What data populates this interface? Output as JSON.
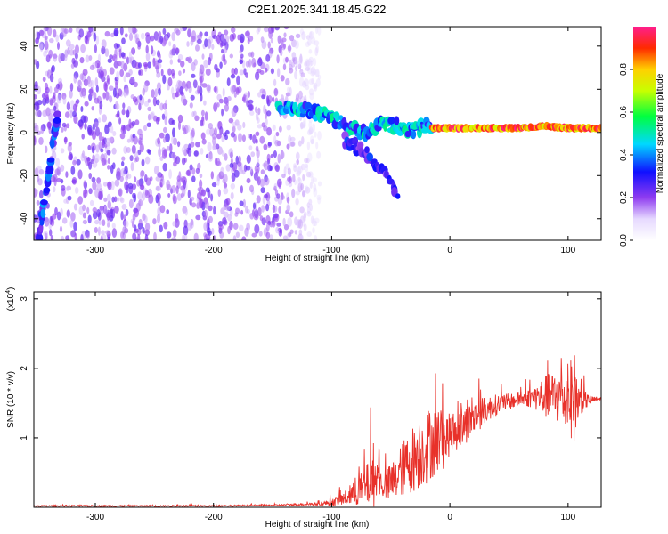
{
  "title": "C2E1.2025.341.18.45.G22",
  "chart_data": [
    {
      "type": "heatmap",
      "title": "C2E1.2025.341.18.45.G22",
      "xlabel": "Height of straight line (km)",
      "ylabel": "Frequency (Hz)",
      "xlim": [
        -352,
        128
      ],
      "ylim": [
        -50,
        49
      ],
      "xticks": [
        -300,
        -200,
        -100,
        0,
        100
      ],
      "xtick_labels": [
        "-300",
        "-200",
        "-100",
        "0",
        "100"
      ],
      "yticks": [
        -40,
        -20,
        0,
        20,
        40
      ],
      "ytick_labels": [
        "-40",
        "-20",
        "0",
        "20",
        "40"
      ],
      "colorbar": {
        "label": "Normalized spectral amplitude",
        "range": [
          0,
          1
        ],
        "ticks": [
          0.0,
          0.2,
          0.4,
          0.6,
          0.8
        ],
        "tick_labels": [
          "0.0",
          "0.2",
          "0.4",
          "0.6",
          "0.8"
        ]
      },
      "features": [
        {
          "name": "diffuse noise",
          "x_range": [
            -352,
            -110
          ],
          "y_range": [
            -50,
            49
          ],
          "amplitude": 0.12
        },
        {
          "name": "multipath band",
          "x": [
            -145,
            -120,
            -100,
            -85,
            -70,
            -55,
            -45,
            -35,
            -25,
            -15
          ],
          "y": [
            12,
            10,
            7,
            2,
            0,
            4,
            3,
            1,
            2,
            3
          ],
          "amplitude": 0.45
        },
        {
          "name": "direct signal",
          "x": [
            -15,
            0,
            20,
            40,
            60,
            80,
            100,
            128
          ],
          "y": [
            2,
            2,
            2,
            2,
            2,
            3,
            2,
            2
          ],
          "amplitude": 0.95
        },
        {
          "name": "secondary arc",
          "x": [
            -90,
            -70,
            -55,
            -45
          ],
          "y": [
            -3,
            -10,
            -20,
            -28
          ],
          "amplitude": 0.3
        },
        {
          "name": "lower-left tone",
          "x": [
            -348,
            -340,
            -332
          ],
          "y": [
            -50,
            -20,
            8
          ],
          "amplitude": 0.35
        }
      ]
    },
    {
      "type": "line",
      "xlabel": "Height of straight line (km)",
      "ylabel": "SNR (10 * v/v)",
      "scale_label": "(x10",
      "scale_exp": "4",
      "xlim": [
        -352,
        128
      ],
      "ylim": [
        0,
        3.1
      ],
      "xticks": [
        -300,
        -200,
        -100,
        0,
        100
      ],
      "xtick_labels": [
        "-300",
        "-200",
        "-100",
        "0",
        "100"
      ],
      "yticks": [
        1,
        2,
        3
      ],
      "ytick_labels": [
        "1",
        "2",
        "3"
      ],
      "series": [
        {
          "name": "SNR",
          "color": "#e8312a",
          "x": [
            -352,
            -300,
            -250,
            -200,
            -150,
            -110,
            -100,
            -90,
            -80,
            -70,
            -65,
            -60,
            -55,
            -50,
            -40,
            -30,
            -20,
            -10,
            -5,
            0,
            10,
            20,
            30,
            40,
            50,
            60,
            70,
            80,
            90,
            100,
            105,
            110,
            120,
            128
          ],
          "y": [
            0.02,
            0.02,
            0.02,
            0.02,
            0.03,
            0.05,
            0.07,
            0.12,
            0.2,
            0.32,
            0.48,
            0.38,
            0.3,
            0.35,
            0.55,
            0.72,
            0.88,
            1.0,
            0.95,
            1.05,
            1.15,
            1.28,
            1.4,
            1.48,
            1.52,
            1.56,
            1.58,
            1.6,
            1.58,
            1.55,
            1.6,
            1.52,
            1.55,
            1.56
          ],
          "noise_envelope": [
            0.01,
            0.01,
            0.01,
            0.01,
            0.01,
            0.02,
            0.05,
            0.1,
            0.18,
            0.3,
            0.5,
            0.2,
            0.2,
            0.3,
            0.4,
            0.5,
            0.55,
            0.5,
            0.4,
            0.3,
            0.3,
            0.25,
            0.2,
            0.15,
            0.12,
            0.1,
            0.15,
            0.3,
            0.4,
            0.45,
            0.7,
            0.2,
            0.05,
            0.03
          ]
        }
      ]
    }
  ]
}
